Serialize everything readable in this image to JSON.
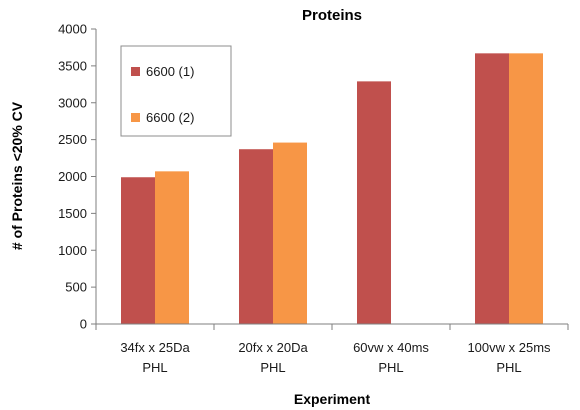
{
  "chart_data": {
    "type": "bar",
    "title": "Proteins",
    "xlabel": "Experiment",
    "ylabel": "# of Proteins <20% CV",
    "ylim": [
      0,
      4000
    ],
    "yticks": [
      "0",
      "500",
      "1000",
      "1500",
      "2000",
      "2500",
      "3000",
      "3500",
      "4000"
    ],
    "grid": false,
    "legend_position": "top-left",
    "categories": [
      [
        "34fx x 25Da",
        "PHL"
      ],
      [
        "20fx x 20Da",
        "PHL"
      ],
      [
        "60vw x 40ms",
        "PHL"
      ],
      [
        "100vw x 25ms",
        "PHL"
      ]
    ],
    "series": [
      {
        "name": "6600 (1)",
        "color": "#c0504d",
        "values": [
          1990,
          2370,
          3290,
          3670
        ]
      },
      {
        "name": "6600 (2)",
        "color": "#f79646",
        "values": [
          2070,
          2460,
          null,
          3670
        ]
      }
    ]
  }
}
